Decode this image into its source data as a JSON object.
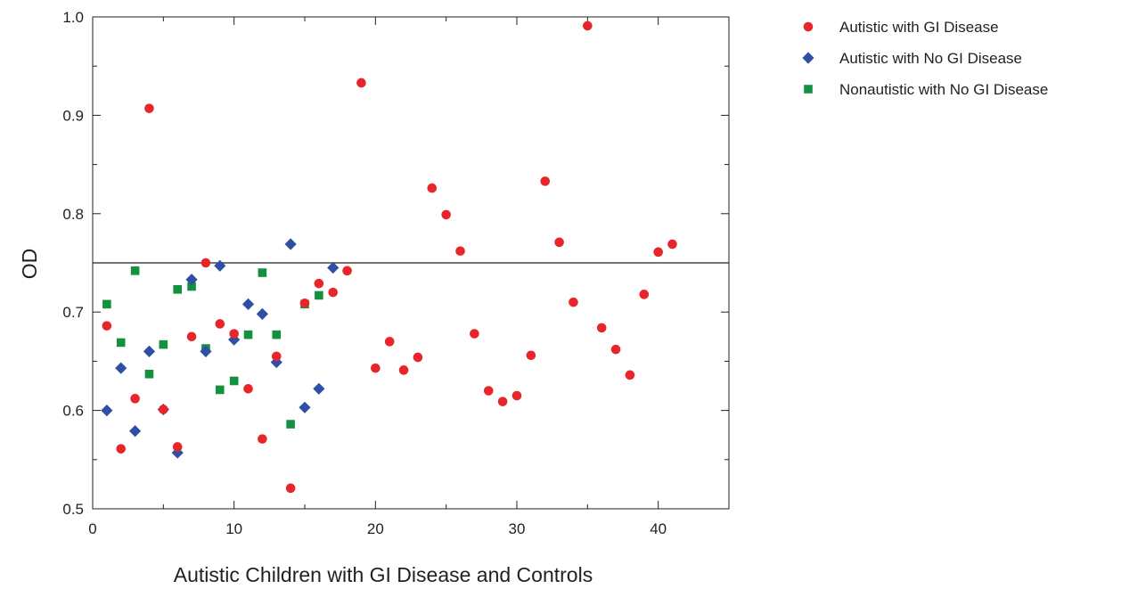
{
  "chart_data": {
    "type": "scatter",
    "xlabel": "Autistic Children with GI Disease and Controls",
    "ylabel": "OD",
    "xlim": [
      0,
      45
    ],
    "ylim": [
      0.5,
      1.0
    ],
    "x_ticks": [
      0,
      10,
      20,
      30,
      40
    ],
    "x_tick_labels": [
      "0",
      "10",
      "20",
      "30",
      "40"
    ],
    "y_ticks": [
      0.5,
      0.6,
      0.7,
      0.8,
      0.9,
      1.0
    ],
    "y_tick_labels": [
      "0.5",
      "0.6",
      "0.7",
      "0.8",
      "0.9",
      "1.0"
    ],
    "x_minor_step": 5,
    "y_minor_step": 0.05,
    "grid": false,
    "legend_position": "top-right outside",
    "reference_line": {
      "y": 0.75
    },
    "series": [
      {
        "name": "Autistic with GI Disease",
        "marker": "circle",
        "color": "#e8262a",
        "points": [
          [
            1,
            0.686
          ],
          [
            2,
            0.561
          ],
          [
            3,
            0.612
          ],
          [
            4,
            0.907
          ],
          [
            5,
            0.601
          ],
          [
            6,
            0.563
          ],
          [
            7,
            0.675
          ],
          [
            8,
            0.75
          ],
          [
            9,
            0.688
          ],
          [
            10,
            0.678
          ],
          [
            11,
            0.622
          ],
          [
            12,
            0.571
          ],
          [
            13,
            0.655
          ],
          [
            14,
            0.521
          ],
          [
            15,
            0.709
          ],
          [
            16,
            0.729
          ],
          [
            17,
            0.72
          ],
          [
            18,
            0.742
          ],
          [
            19,
            0.933
          ],
          [
            20,
            0.643
          ],
          [
            21,
            0.67
          ],
          [
            22,
            0.641
          ],
          [
            23,
            0.654
          ],
          [
            24,
            0.826
          ],
          [
            25,
            0.799
          ],
          [
            26,
            0.762
          ],
          [
            27,
            0.678
          ],
          [
            28,
            0.62
          ],
          [
            29,
            0.609
          ],
          [
            30,
            0.615
          ],
          [
            31,
            0.656
          ],
          [
            32,
            0.833
          ],
          [
            33,
            0.771
          ],
          [
            34,
            0.71
          ],
          [
            35,
            0.991
          ],
          [
            36,
            0.684
          ],
          [
            37,
            0.662
          ],
          [
            38,
            0.636
          ],
          [
            39,
            0.718
          ],
          [
            40,
            0.761
          ],
          [
            41,
            0.769
          ]
        ]
      },
      {
        "name": "Autistic with No GI Disease",
        "marker": "diamond",
        "color": "#2e4fa3",
        "points": [
          [
            1,
            0.6
          ],
          [
            2,
            0.643
          ],
          [
            3,
            0.579
          ],
          [
            4,
            0.66
          ],
          [
            5,
            0.601
          ],
          [
            6,
            0.557
          ],
          [
            7,
            0.733
          ],
          [
            8,
            0.66
          ],
          [
            9,
            0.747
          ],
          [
            10,
            0.672
          ],
          [
            11,
            0.708
          ],
          [
            12,
            0.698
          ],
          [
            13,
            0.649
          ],
          [
            14,
            0.769
          ],
          [
            15,
            0.603
          ],
          [
            16,
            0.622
          ],
          [
            17,
            0.745
          ]
        ]
      },
      {
        "name": "Nonautistic with No GI Disease",
        "marker": "square",
        "color": "#13913f",
        "points": [
          [
            1,
            0.708
          ],
          [
            2,
            0.669
          ],
          [
            3,
            0.742
          ],
          [
            4,
            0.637
          ],
          [
            5,
            0.667
          ],
          [
            6,
            0.723
          ],
          [
            7,
            0.726
          ],
          [
            8,
            0.663
          ],
          [
            9,
            0.621
          ],
          [
            10,
            0.63
          ],
          [
            11,
            0.677
          ],
          [
            12,
            0.74
          ],
          [
            13,
            0.677
          ],
          [
            14,
            0.586
          ],
          [
            15,
            0.708
          ],
          [
            16,
            0.717
          ]
        ]
      }
    ]
  }
}
